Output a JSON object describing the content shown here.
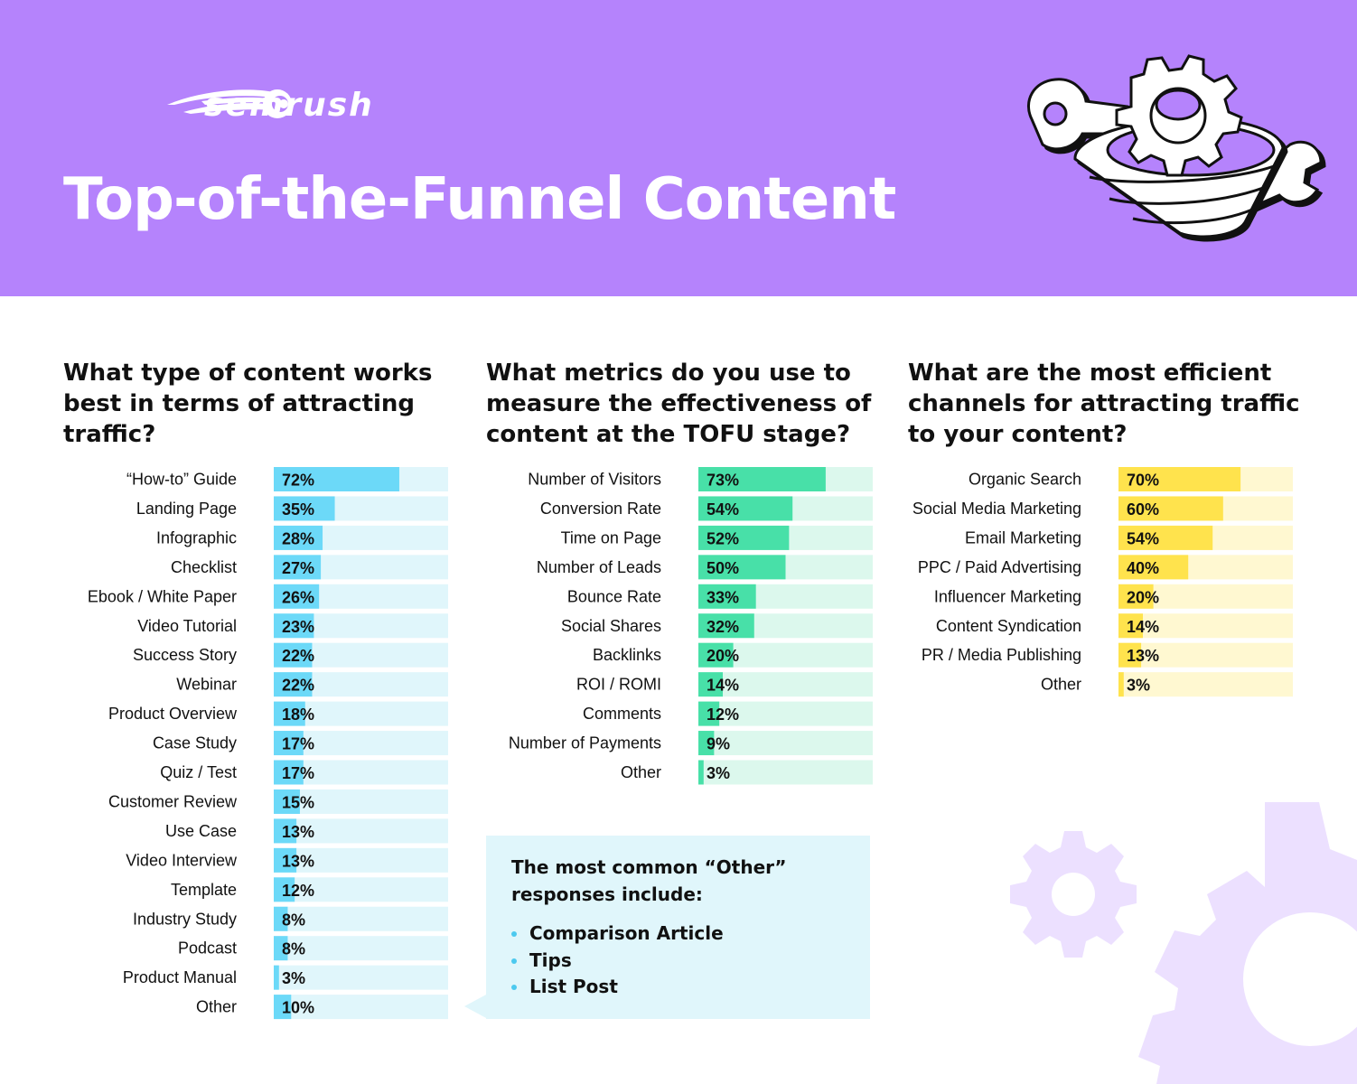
{
  "header": {
    "brand": "semrush",
    "title": "Top-of-the-Funnel Content"
  },
  "colors": {
    "header_bg": "#b583fc",
    "blue_bar": "#6cd9f8",
    "blue_track": "#e0f6fb",
    "green_bar": "#48e0a8",
    "green_track": "#dcf8ed",
    "yellow_bar": "#ffe34d",
    "yellow_track": "#fff8d1",
    "gear_decoration": "#ece0ff"
  },
  "icons": {
    "logo": "semrush-comet-logo",
    "illustration": "funnel-gear-wrench-illustration",
    "decoration": "gear-decoration-icon"
  },
  "sections": [
    {
      "question": "What type of content works best in terms of attracting traffic?"
    },
    {
      "question": "What metrics do you use to measure the effectiveness of content at the TOFU stage?"
    },
    {
      "question": "What are the most efficient channels for attracting traffic to your content?"
    }
  ],
  "chart_data": [
    {
      "type": "bar",
      "orientation": "horizontal",
      "title": "What type of content works best in terms of attracting traffic?",
      "unit": "%",
      "xlim": [
        0,
        100
      ],
      "categories": [
        "“How-to” Guide",
        "Landing Page",
        "Infographic",
        "Checklist",
        "Ebook / White Paper",
        "Video Tutorial",
        "Success Story",
        "Webinar",
        "Product Overview",
        "Case Study",
        "Quiz / Test",
        "Customer Review",
        "Use Case",
        "Video Interview",
        "Template",
        "Industry Study",
        "Podcast",
        "Product Manual",
        "Other"
      ],
      "values": [
        72,
        35,
        28,
        27,
        26,
        23,
        22,
        22,
        18,
        17,
        17,
        15,
        13,
        13,
        12,
        8,
        8,
        3,
        10
      ],
      "labels": [
        "72%",
        "35%",
        "28%",
        "27%",
        "26%",
        "23%",
        "22%",
        "22%",
        "18%",
        "17%",
        "17%",
        "15%",
        "13%",
        "13%",
        "12%",
        "8%",
        "8%",
        "3%",
        "10%"
      ]
    },
    {
      "type": "bar",
      "orientation": "horizontal",
      "title": "What metrics do you use to measure the effectiveness of content at the TOFU stage?",
      "unit": "%",
      "xlim": [
        0,
        100
      ],
      "categories": [
        "Number of Visitors",
        "Conversion Rate",
        "Time on Page",
        "Number of Leads",
        "Bounce Rate",
        "Social Shares",
        "Backlinks",
        "ROI / ROMI",
        "Comments",
        "Number of Payments",
        "Other"
      ],
      "values": [
        73,
        54,
        52,
        50,
        33,
        32,
        20,
        14,
        12,
        9,
        3
      ],
      "labels": [
        "73%",
        "54%",
        "52%",
        "50%",
        "33%",
        "32%",
        "20%",
        "14%",
        "12%",
        "9%",
        "3%"
      ]
    },
    {
      "type": "bar",
      "orientation": "horizontal",
      "title": "What are the most efficient channels for attracting traffic to your content?",
      "unit": "%",
      "xlim": [
        0,
        100
      ],
      "categories": [
        "Organic Search",
        "Social Media Marketing",
        "Email Marketing",
        "PPC / Paid Advertising",
        "Influencer Marketing",
        "Content Syndication",
        "PR / Media Publishing",
        "Other"
      ],
      "values": [
        70,
        60,
        54,
        40,
        20,
        14,
        13,
        3
      ],
      "labels": [
        "70%",
        "60%",
        "54%",
        "40%",
        "20%",
        "14%",
        "13%",
        "3%"
      ]
    }
  ],
  "callout": {
    "title": "The most common “Other” responses include:",
    "items": [
      "Comparison Article",
      "Tips",
      "List Post"
    ]
  }
}
